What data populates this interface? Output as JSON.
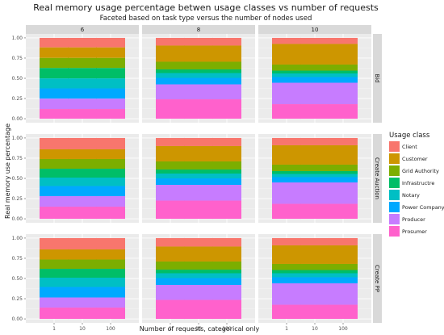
{
  "chart_data": {
    "type": "bar",
    "subtype": "stacked-faceted",
    "title": "Real memory usage percentage betwen usage classes vs number of requests",
    "subtitle": "Faceted based on task type versus the number of nodes used",
    "xlabel": "Number of requests, categorical only",
    "ylabel": "Real memory use percentage",
    "ylim": [
      0,
      1
    ],
    "yticks": [
      "0.00",
      "0.25",
      "0.50",
      "0.75",
      "1.00"
    ],
    "categories": [
      "1",
      "10",
      "100"
    ],
    "col_facets": [
      "6",
      "8",
      "10"
    ],
    "row_facets": [
      "Bid",
      "Create Auction",
      "Create PP"
    ],
    "legend": {
      "title": "Usage class",
      "position": "right"
    },
    "classes": [
      "Client",
      "Customer",
      "Grid Authority",
      "Infrastructre",
      "Notary",
      "Power Company",
      "Producer",
      "Prosumer"
    ],
    "colors": [
      "#F8766D",
      "#CD9600",
      "#7CAE00",
      "#00BE67",
      "#00BFC4",
      "#00A9FF",
      "#C77CFF",
      "#FF61CC"
    ],
    "panels": [
      {
        "row": "Bid",
        "col": "6",
        "segments": [
          0.118,
          0.13,
          0.125,
          0.128,
          0.124,
          0.127,
          0.128,
          0.12
        ]
      },
      {
        "row": "Bid",
        "col": "8",
        "segments": [
          0.095,
          0.2,
          0.095,
          0.045,
          0.06,
          0.08,
          0.185,
          0.24
        ]
      },
      {
        "row": "Bid",
        "col": "10",
        "segments": [
          0.075,
          0.255,
          0.075,
          0.035,
          0.045,
          0.07,
          0.265,
          0.18
        ]
      },
      {
        "row": "Create Auction",
        "col": "6",
        "segments": [
          0.14,
          0.12,
          0.12,
          0.11,
          0.105,
          0.125,
          0.13,
          0.15
        ]
      },
      {
        "row": "Create Auction",
        "col": "8",
        "segments": [
          0.1,
          0.19,
          0.1,
          0.05,
          0.06,
          0.08,
          0.195,
          0.225
        ]
      },
      {
        "row": "Create Auction",
        "col": "10",
        "segments": [
          0.09,
          0.24,
          0.08,
          0.035,
          0.04,
          0.065,
          0.265,
          0.185
        ]
      },
      {
        "row": "Create PP",
        "col": "6",
        "segments": [
          0.14,
          0.125,
          0.115,
          0.11,
          0.115,
          0.13,
          0.125,
          0.14
        ]
      },
      {
        "row": "Create PP",
        "col": "8",
        "segments": [
          0.105,
          0.185,
          0.1,
          0.045,
          0.06,
          0.085,
          0.185,
          0.235
        ]
      },
      {
        "row": "Create PP",
        "col": "10",
        "segments": [
          0.09,
          0.23,
          0.075,
          0.04,
          0.05,
          0.075,
          0.265,
          0.175
        ]
      }
    ],
    "grid": true
  }
}
